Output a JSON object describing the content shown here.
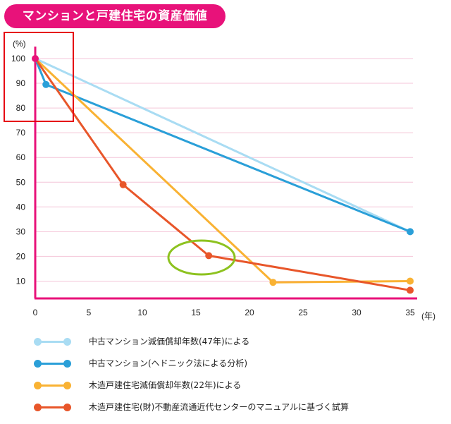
{
  "header": {
    "title": "マンションと戸建住宅の資産価値"
  },
  "chart_data": {
    "type": "line",
    "title": "マンションと戸建住宅の資産価値",
    "ylabel": "(%)",
    "xlabel": "(年)",
    "xlim": [
      0,
      35
    ],
    "ylim": [
      3,
      100
    ],
    "xticks": [
      0,
      5,
      10,
      15,
      20,
      25,
      30,
      35
    ],
    "yticks": [
      10,
      20,
      30,
      40,
      50,
      60,
      70,
      80,
      90,
      100
    ],
    "grid": "horizontal",
    "legend_position": "bottom",
    "series": [
      {
        "name": "中古マンション減価償却年数(47年)による",
        "color": "#a9dcf3",
        "points": [
          [
            0,
            100
          ],
          [
            35,
            30
          ]
        ]
      },
      {
        "name": "中古マンション(ヘドニック法による分析)",
        "color": "#2a9fd8",
        "points": [
          [
            0,
            100
          ],
          [
            1,
            89.5
          ],
          [
            35,
            30
          ]
        ]
      },
      {
        "name": "木造戸建住宅減価償却年数(22年)による",
        "color": "#f9b233",
        "points": [
          [
            0,
            100
          ],
          [
            22.2,
            9.5
          ],
          [
            35,
            10
          ]
        ]
      },
      {
        "name": "木造戸建住宅(財)不動産流通近代センターのマニュアルに基づく試算",
        "color": "#e8562a",
        "points": [
          [
            0,
            100
          ],
          [
            8.2,
            49
          ],
          [
            16.2,
            20.3
          ],
          [
            35,
            6.3
          ]
        ]
      }
    ]
  },
  "colors": {
    "axis": "#e8127a",
    "grid": "#f4c6d8",
    "highlight_box": "#e60012",
    "highlight_circle": "#8dc21f"
  }
}
